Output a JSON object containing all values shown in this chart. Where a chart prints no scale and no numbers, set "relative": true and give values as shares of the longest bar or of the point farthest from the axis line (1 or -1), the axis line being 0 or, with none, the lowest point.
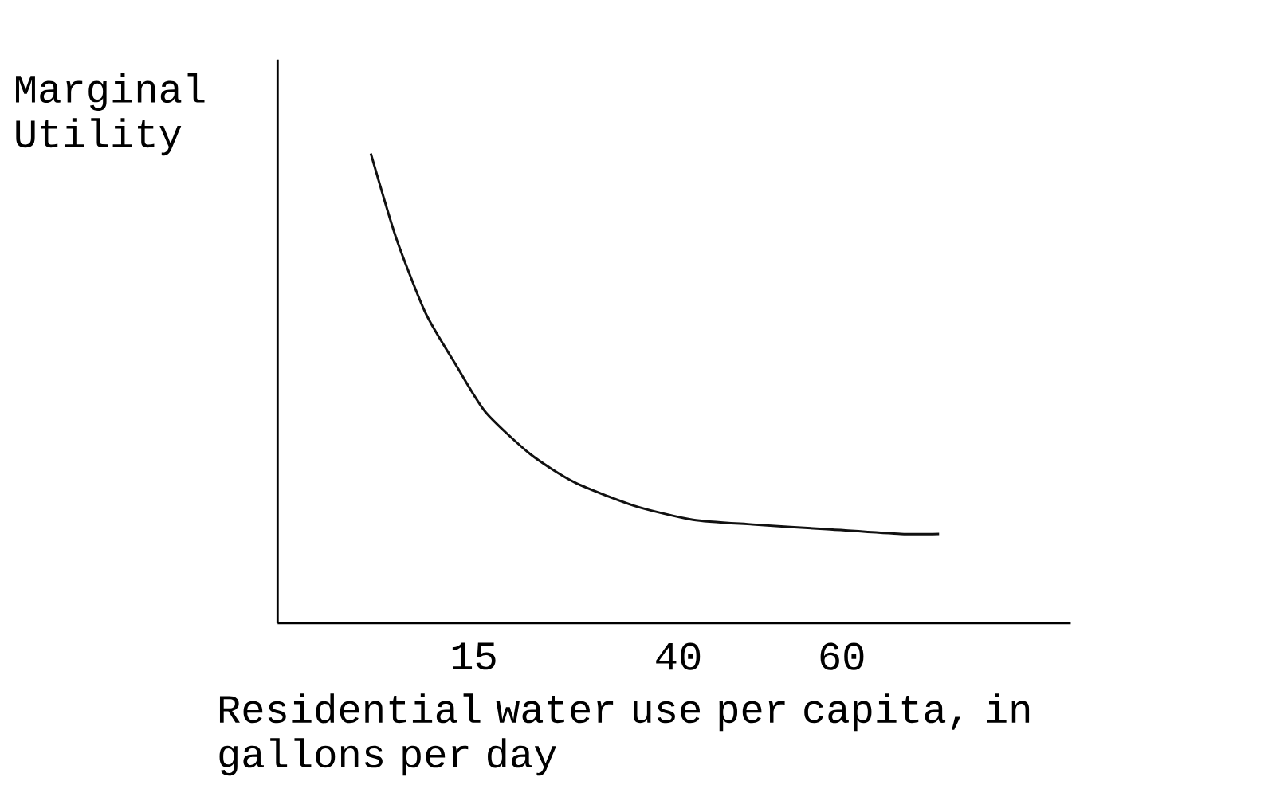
{
  "chart_data": {
    "type": "line",
    "relative": true,
    "ylabel": "Marginal Utility",
    "xlabel": "Residential water use per capita, in gallons per day",
    "xlim": [
      -9,
      88
    ],
    "xticks": [
      15,
      40,
      60
    ],
    "color": "#111111",
    "x": [
      2.4,
      5.5,
      9.1,
      12.8,
      16.4,
      21.9,
      27.3,
      34.6,
      41.8,
      49.1,
      58.2,
      67.2,
      71.9
    ],
    "values": [
      1,
      0.82,
      0.66,
      0.55,
      0.45,
      0.36,
      0.3,
      0.25,
      0.22,
      0.21,
      0.2,
      0.19,
      0.19
    ]
  }
}
